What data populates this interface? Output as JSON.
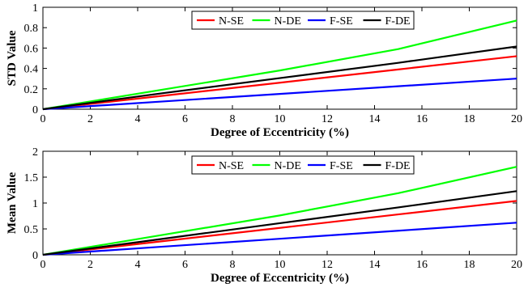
{
  "chart_data": [
    {
      "type": "line",
      "xlabel": "Degree of Eccentricity (%)",
      "ylabel": "STD Value",
      "xlim": [
        0,
        20
      ],
      "ylim": [
        0,
        1
      ],
      "xticks": [
        "0",
        "2",
        "4",
        "6",
        "8",
        "10",
        "12",
        "14",
        "16",
        "18",
        "20"
      ],
      "yticks": [
        "0",
        "0.2",
        "0.4",
        "0.6",
        "0.8",
        "1"
      ],
      "grid": false,
      "legend_position": "top-right",
      "x": [
        0,
        5,
        10,
        15,
        20
      ],
      "series": [
        {
          "name": "N-SE",
          "color": "#ff0000",
          "values": [
            0,
            0.13,
            0.26,
            0.39,
            0.52
          ]
        },
        {
          "name": "N-DE",
          "color": "#00ff00",
          "values": [
            0,
            0.19,
            0.38,
            0.59,
            0.87
          ]
        },
        {
          "name": "F-SE",
          "color": "#0000ff",
          "values": [
            0,
            0.075,
            0.15,
            0.225,
            0.3
          ]
        },
        {
          "name": "F-DE",
          "color": "#000000",
          "values": [
            0,
            0.155,
            0.305,
            0.455,
            0.615
          ]
        }
      ]
    },
    {
      "type": "line",
      "xlabel": "Degree of Eccentricity (%)",
      "ylabel": "Mean Value",
      "xlim": [
        0,
        20
      ],
      "ylim": [
        0,
        2
      ],
      "xticks": [
        "0",
        "2",
        "4",
        "6",
        "8",
        "10",
        "12",
        "14",
        "16",
        "18",
        "20"
      ],
      "yticks": [
        "0",
        "0.5",
        "1",
        "1.5",
        "2"
      ],
      "grid": false,
      "legend_position": "top-right",
      "x": [
        0,
        5,
        10,
        15,
        20
      ],
      "series": [
        {
          "name": "N-SE",
          "color": "#ff0000",
          "values": [
            0,
            0.26,
            0.52,
            0.78,
            1.04
          ]
        },
        {
          "name": "N-DE",
          "color": "#00ff00",
          "values": [
            0,
            0.38,
            0.76,
            1.19,
            1.7
          ]
        },
        {
          "name": "F-SE",
          "color": "#0000ff",
          "values": [
            0,
            0.155,
            0.31,
            0.465,
            0.62
          ]
        },
        {
          "name": "F-DE",
          "color": "#000000",
          "values": [
            0,
            0.305,
            0.61,
            0.915,
            1.23
          ]
        }
      ]
    }
  ]
}
